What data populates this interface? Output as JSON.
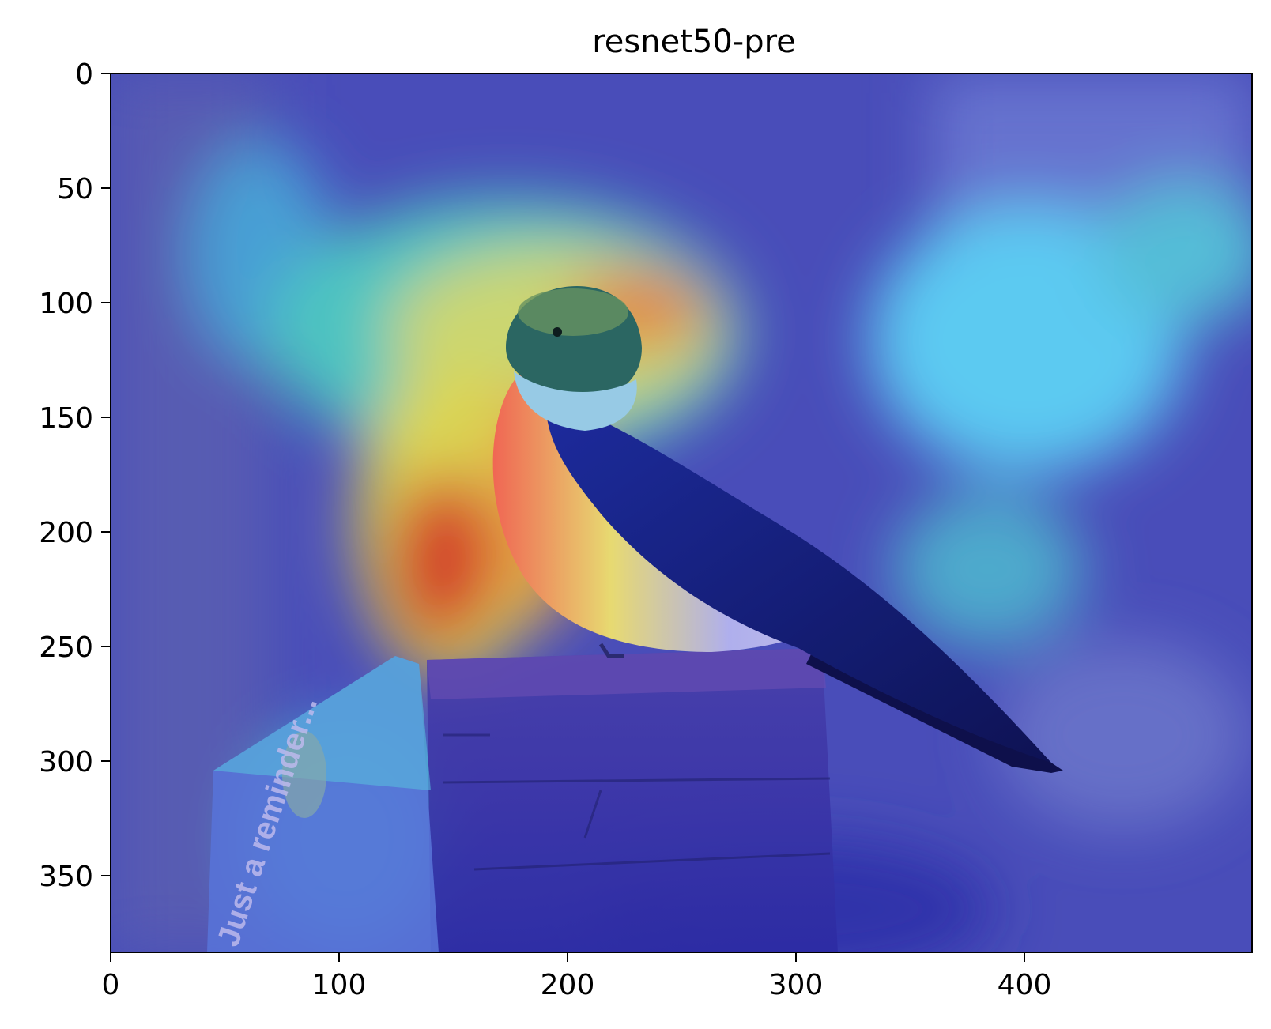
{
  "figure": {
    "title": "resnet50-pre",
    "subject": "bird perched on wooden post with sign",
    "sign_text": "Just a reminder...",
    "colormap": "jet",
    "x_ticks": [
      "0",
      "100",
      "200",
      "300",
      "400"
    ],
    "y_ticks": [
      "0",
      "50",
      "100",
      "150",
      "200",
      "250",
      "300",
      "350"
    ],
    "xlim": [
      0,
      500
    ],
    "ylim": [
      385,
      0
    ]
  }
}
